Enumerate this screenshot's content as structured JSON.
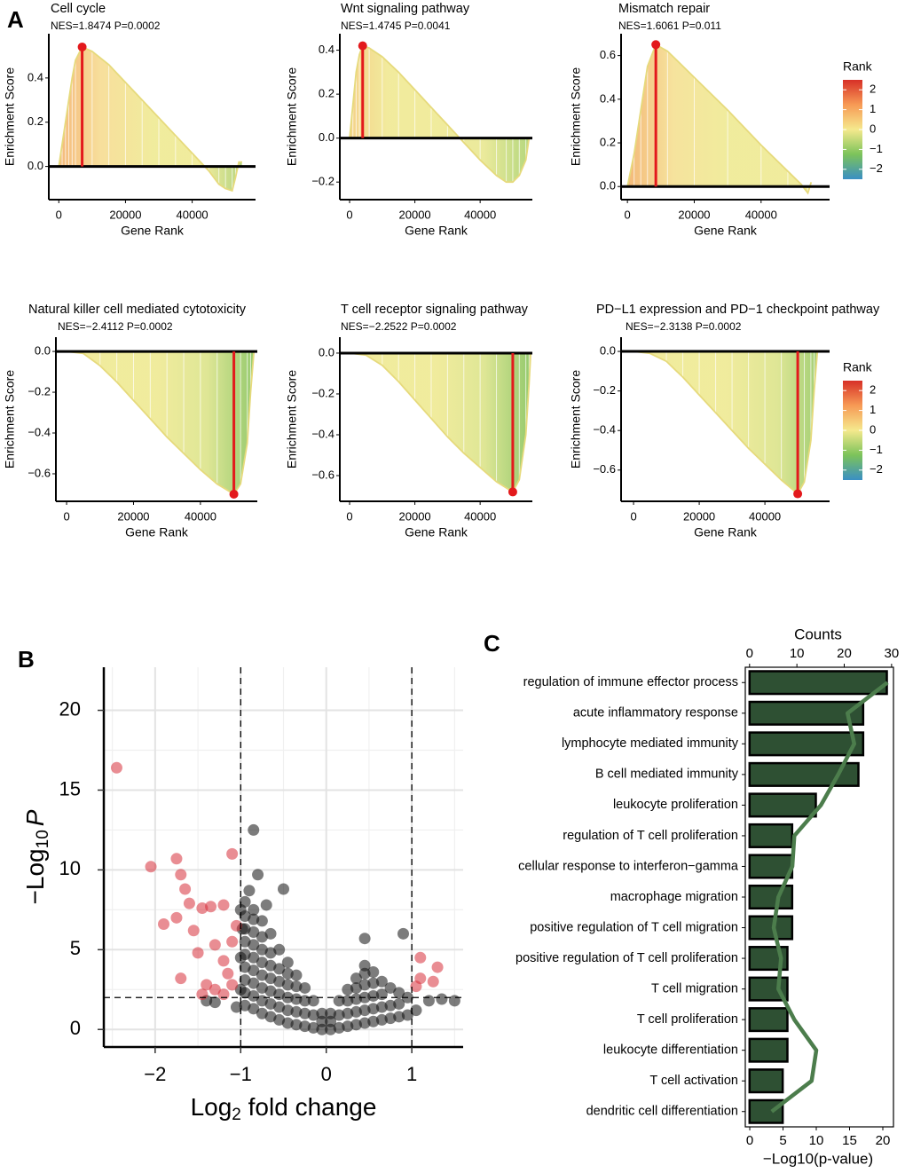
{
  "panel_labels": [
    "A",
    "B",
    "C"
  ],
  "chart_data": [
    {
      "type": "gsea",
      "title": "Cell cycle",
      "subtitle": "NES=1.8474 P=0.0002",
      "xlabel": "Gene Rank",
      "ylabel": "Enrichment Score",
      "x": [
        0,
        1000,
        2000,
        3000,
        4000,
        5000,
        7000,
        10000,
        15000,
        20000,
        25000,
        30000,
        35000,
        40000,
        45000,
        48000,
        50000,
        52000,
        53000,
        54000,
        55000
      ],
      "values": [
        0,
        0.1,
        0.2,
        0.3,
        0.4,
        0.48,
        0.54,
        0.52,
        0.46,
        0.38,
        0.3,
        0.22,
        0.14,
        0.06,
        -0.02,
        -0.08,
        -0.1,
        -0.11,
        -0.05,
        0.02,
        0.02
      ],
      "xlim": [
        -3000,
        59000
      ],
      "ylim": [
        -0.15,
        0.6
      ],
      "xticks": [
        0,
        20000,
        40000
      ],
      "yticks": [
        {
          "value": 0,
          "label": "0.0"
        },
        0.2,
        0.4
      ],
      "color": "#e6da7c",
      "peak_color": "#e3191c",
      "gradient": [
        "#f2a35a",
        "#f6d98a",
        "#eee88c",
        "#eee88c",
        "#8dc35e"
      ]
    },
    {
      "type": "gsea",
      "title": "Wnt signaling pathway",
      "subtitle": "NES=1.4745 P=0.0041",
      "xlabel": "Gene Rank",
      "ylabel": "Enrichment Score",
      "x": [
        0,
        1000,
        2000,
        3000,
        4000,
        6000,
        10000,
        15000,
        20000,
        25000,
        30000,
        35000,
        40000,
        45000,
        48000,
        50000,
        52000,
        54000,
        55000
      ],
      "values": [
        0,
        0.15,
        0.3,
        0.38,
        0.42,
        0.41,
        0.37,
        0.3,
        0.22,
        0.14,
        0.06,
        -0.02,
        -0.1,
        -0.17,
        -0.2,
        -0.2,
        -0.17,
        -0.1,
        0
      ],
      "xlim": [
        -3000,
        56000
      ],
      "ylim": [
        -0.28,
        0.475
      ],
      "xticks": [
        0,
        20000,
        40000
      ],
      "yticks": [
        {
          "value": -0.2,
          "label": "−0.2"
        },
        {
          "value": 0,
          "label": "0.0"
        },
        0.2,
        0.4
      ],
      "color": "#e6da7c",
      "peak_color": "#e3191c",
      "gradient": [
        "#f4c36e",
        "#efe78c",
        "#eee88c",
        "#e7e68a",
        "#a4cf65"
      ]
    },
    {
      "type": "gsea",
      "title": "Mismatch repair",
      "subtitle": "NES=1.6061 P=0.011",
      "xlabel": "Gene Rank",
      "ylabel": "Enrichment Score",
      "x": [
        0,
        2000,
        4000,
        6000,
        8500,
        12000,
        20000,
        30000,
        40000,
        48000,
        52000,
        54000,
        55000
      ],
      "values": [
        0,
        0.15,
        0.35,
        0.55,
        0.65,
        0.62,
        0.5,
        0.35,
        0.19,
        0.07,
        0.01,
        -0.03,
        0.02
      ],
      "xlim": [
        -1900,
        60500
      ],
      "ylim": [
        -0.06,
        0.7
      ],
      "xticks": [
        0,
        20000,
        40000
      ],
      "yticks": [
        {
          "value": 0,
          "label": "0.0"
        },
        0.2,
        0.4,
        0.6
      ],
      "color": "#e6da7c",
      "peak_color": "#e3191c",
      "gradient": [
        "#f2a65b",
        "#f4de8c",
        "#eee88c",
        "#eee88c",
        "#eee88c"
      ],
      "legend": {
        "title": "Rank",
        "lim": [
          -2.5,
          2.5
        ],
        "ticks": [
          2,
          1,
          0,
          {
            "value": -1,
            "label": "−1"
          },
          {
            "value": -2,
            "label": "−2"
          }
        ],
        "colors": [
          "#d73027",
          "#f79a55",
          "#f5e98d",
          "#7cc35a",
          "#3a8fc4"
        ]
      }
    },
    {
      "type": "gsea",
      "title": "Natural killer cell mediated cytotoxicity",
      "subtitle": "NES=−2.4112 P=0.0002",
      "xlabel": "Gene Rank",
      "ylabel": "Enrichment Score",
      "x": [
        0,
        5000,
        10000,
        15000,
        20000,
        25000,
        30000,
        35000,
        40000,
        45000,
        50000,
        52000,
        54000,
        55000,
        56000
      ],
      "values": [
        0,
        -0.01,
        -0.07,
        -0.15,
        -0.24,
        -0.33,
        -0.42,
        -0.5,
        -0.58,
        -0.65,
        -0.7,
        -0.65,
        -0.45,
        -0.2,
        0
      ],
      "xlim": [
        -3200,
        57000
      ],
      "ylim": [
        -0.735,
        0.07
      ],
      "xticks": [
        0,
        20000,
        40000
      ],
      "yticks": [
        {
          "value": -0.6,
          "label": "−0.6"
        },
        {
          "value": -0.4,
          "label": "−0.4"
        },
        {
          "value": -0.2,
          "label": "−0.2"
        },
        {
          "value": 0,
          "label": "0.0"
        }
      ],
      "color": "#e6da7c",
      "peak_color": "#e3191c",
      "gradient": [
        "#efe48c",
        "#eee88c",
        "#eee88c",
        "#d9e283",
        "#7fbf52"
      ]
    },
    {
      "type": "gsea",
      "title": "T cell receptor signaling pathway",
      "subtitle": "NES=−2.2522 P=0.0002",
      "xlabel": "Gene Rank",
      "ylabel": "Enrichment Score",
      "x": [
        0,
        5000,
        10000,
        15000,
        20000,
        25000,
        30000,
        35000,
        40000,
        45000,
        50000,
        52000,
        54000,
        55000,
        55500
      ],
      "values": [
        0,
        -0.01,
        -0.06,
        -0.14,
        -0.23,
        -0.32,
        -0.41,
        -0.49,
        -0.56,
        -0.63,
        -0.68,
        -0.62,
        -0.4,
        -0.15,
        0
      ],
      "xlim": [
        -3000,
        56000
      ],
      "ylim": [
        -0.726,
        0.078
      ],
      "xticks": [
        0,
        20000,
        40000
      ],
      "yticks": [
        {
          "value": -0.6,
          "label": "−0.6"
        },
        {
          "value": -0.4,
          "label": "−0.4"
        },
        {
          "value": -0.2,
          "label": "−0.2"
        },
        {
          "value": 0,
          "label": "0.0"
        }
      ],
      "color": "#e6da7c",
      "peak_color": "#e3191c",
      "gradient": [
        "#efe48c",
        "#eee88c",
        "#eee88c",
        "#d9e283",
        "#7fbf52"
      ]
    },
    {
      "type": "gsea",
      "title": "PD−L1 expression and PD−1 checkpoint pathway",
      "subtitle": "NES=−2.3138 P=0.0002",
      "xlabel": "Gene Rank",
      "ylabel": "Enrichment Score",
      "x": [
        0,
        5000,
        10000,
        15000,
        20000,
        25000,
        30000,
        35000,
        40000,
        45000,
        50000,
        52000,
        54000,
        55000,
        56000
      ],
      "values": [
        0,
        -0.01,
        -0.05,
        -0.13,
        -0.22,
        -0.31,
        -0.4,
        -0.49,
        -0.57,
        -0.65,
        -0.72,
        -0.66,
        -0.45,
        -0.2,
        0
      ],
      "xlim": [
        -3800,
        59700
      ],
      "ylim": [
        -0.758,
        0.072
      ],
      "xticks": [
        0,
        20000,
        40000
      ],
      "yticks": [
        {
          "value": -0.6,
          "label": "−0.6"
        },
        {
          "value": -0.4,
          "label": "−0.4"
        },
        {
          "value": -0.2,
          "label": "−0.2"
        },
        {
          "value": 0,
          "label": "0.0"
        }
      ],
      "color": "#e6da7c",
      "peak_color": "#e3191c",
      "gradient": [
        "#efe48c",
        "#eee88c",
        "#eee88c",
        "#d9e283",
        "#7fbf52"
      ],
      "legend": {
        "title": "Rank",
        "lim": [
          -2.5,
          2.5
        ],
        "ticks": [
          2,
          1,
          0,
          {
            "value": -1,
            "label": "−1"
          },
          {
            "value": -2,
            "label": "−2"
          }
        ],
        "colors": [
          "#d73027",
          "#f79a55",
          "#f5e98d",
          "#7cc35a",
          "#3a8fc4"
        ]
      }
    },
    {
      "type": "scatter",
      "xlabel": {
        "main": "Log",
        "sub": "2",
        "rest": " fold change"
      },
      "ylabel": {
        "main": "−Log",
        "sub": "10",
        "italic": "P"
      },
      "xlim": [
        -2.6,
        1.6
      ],
      "ylim": [
        -1.1,
        22.7
      ],
      "xticks": [
        {
          "value": -2,
          "label": "−2"
        },
        {
          "value": -1,
          "label": "−1"
        },
        0,
        1
      ],
      "yticks": [
        0,
        5,
        10,
        15,
        20
      ],
      "minor_xticks": [
        -2.5,
        -1.5,
        -0.5,
        0.5,
        1.5
      ],
      "minor_yticks": [
        2.5,
        7.5,
        12.5,
        17.5
      ],
      "grid": true,
      "xcutoffs": [
        -1,
        1
      ],
      "ycutoff": 2,
      "series": [
        {
          "color": "#111111",
          "x": [
            -0.95,
            -0.95,
            -0.95,
            -0.95,
            -0.95,
            -0.95,
            -0.95,
            -0.95,
            -0.95,
            -0.85,
            -0.85,
            -0.85,
            -0.85,
            -0.85,
            -0.85,
            -0.85,
            -0.85,
            -0.85,
            -0.75,
            -0.75,
            -0.75,
            -0.75,
            -0.75,
            -0.75,
            -0.75,
            -0.75,
            -0.65,
            -0.65,
            -0.65,
            -0.65,
            -0.65,
            -0.65,
            -0.65,
            -0.55,
            -0.55,
            -0.55,
            -0.55,
            -0.55,
            -0.55,
            -0.45,
            -0.45,
            -0.45,
            -0.45,
            -0.45,
            -0.45,
            -0.35,
            -0.35,
            -0.35,
            -0.35,
            -0.35,
            -0.25,
            -0.25,
            -0.25,
            -0.25,
            -0.15,
            -0.15,
            -0.15,
            -0.05,
            -0.05,
            -0.05,
            0.05,
            0.05,
            0.05,
            0.15,
            0.15,
            0.15,
            0.25,
            0.25,
            0.25,
            0.25,
            0.35,
            0.35,
            0.35,
            0.35,
            0.35,
            0.45,
            0.45,
            0.45,
            0.45,
            0.45,
            0.45,
            0.55,
            0.55,
            0.55,
            0.55,
            0.55,
            0.65,
            0.65,
            0.65,
            0.65,
            0.75,
            0.75,
            0.75,
            0.85,
            0.85,
            0.85,
            0.95,
            0.95,
            -0.85,
            -0.8,
            -0.5,
            -0.9,
            -0.7,
            -1.0,
            0.9,
            0.45,
            -1.4,
            -1.3,
            -1.05,
            1.2,
            1.35,
            1.5,
            1.05,
            -1.0,
            -1.0,
            -0.98
          ],
          "values": [
            1.5,
            2.3,
            3.1,
            3.9,
            4.7,
            5.5,
            6.3,
            7.1,
            8.0,
            1.3,
            2.1,
            2.9,
            3.7,
            4.5,
            5.3,
            6.1,
            6.9,
            7.5,
            1.0,
            1.8,
            2.6,
            3.4,
            4.2,
            5.0,
            5.8,
            6.8,
            0.8,
            1.6,
            2.4,
            3.2,
            4.0,
            4.8,
            6.0,
            0.6,
            1.4,
            2.2,
            3.0,
            3.8,
            5.0,
            0.4,
            1.2,
            2.0,
            2.8,
            3.5,
            4.2,
            0.3,
            1.1,
            1.9,
            2.7,
            3.4,
            0.2,
            1.0,
            1.8,
            2.6,
            0.1,
            0.9,
            1.8,
            0,
            0.5,
            1.0,
            0,
            0.5,
            1.0,
            0.1,
            0.9,
            1.8,
            0.2,
            1.0,
            1.8,
            2.5,
            0.3,
            1.1,
            1.9,
            2.6,
            3.2,
            0.4,
            1.2,
            2.0,
            2.8,
            3.5,
            4.0,
            0.5,
            1.3,
            2.1,
            2.9,
            3.6,
            0.6,
            1.4,
            2.2,
            3.0,
            0.7,
            1.5,
            2.6,
            0.8,
            1.6,
            2.3,
            0.9,
            2.0,
            12.5,
            9.7,
            8.8,
            8.7,
            7.8,
            7.5,
            6.0,
            5.7,
            1.8,
            1.7,
            1.4,
            1.8,
            1.9,
            1.8,
            1.2,
            4.5,
            2.5,
            6.3
          ]
        },
        {
          "color": "#d7303a",
          "x": [
            -2.45,
            -2.05,
            -1.75,
            -1.7,
            -1.65,
            -1.6,
            -1.75,
            -1.9,
            -1.55,
            -1.45,
            -1.35,
            -1.2,
            -1.1,
            -1.3,
            -1.5,
            -1.7,
            -1.4,
            -1.2,
            -1.1,
            -1.05,
            -1.15,
            -1.3,
            -1.1,
            -1.45,
            -1.2,
            1.1,
            1.3,
            1.05,
            1.25,
            1.1
          ],
          "values": [
            16.4,
            10.2,
            10.7,
            9.7,
            8.8,
            7.9,
            7.0,
            6.6,
            6.2,
            7.6,
            7.7,
            7.8,
            11.0,
            5.3,
            4.8,
            3.2,
            2.8,
            4.3,
            5.5,
            6.5,
            3.5,
            2.5,
            2.8,
            2.2,
            2.2,
            4.5,
            3.9,
            2.7,
            3.0,
            3.2
          ]
        }
      ]
    },
    {
      "type": "bar",
      "orientation": "horizontal",
      "xlabel": "−Log10(p-value)",
      "x_top_label": "Counts",
      "categories": [
        "regulation of immune effector process",
        "acute inflammatory response",
        "lymphocyte mediated immunity",
        "B cell mediated immunity",
        "leukocyte proliferation",
        "regulation of T cell proliferation",
        "cellular response to interferon−gamma",
        "macrophage migration",
        "positive regulation of T cell migration",
        "positive regulation of T cell proliferation",
        "T cell migration",
        "T cell proliferation",
        "leukocyte differentiation",
        "T cell activation",
        "dendritic cell differentiation"
      ],
      "series": [
        {
          "type": "bar",
          "color": "#2e5033",
          "values": [
            29,
            24,
            24,
            23,
            14,
            9,
            9,
            9,
            9,
            8,
            8,
            8,
            8,
            7,
            7
          ]
        },
        {
          "type": "line",
          "color": "#4c7d4c",
          "axis": "x2",
          "values": [
            20.7,
            14.7,
            15.7,
            13.3,
            10.7,
            6.7,
            6.4,
            4.3,
            3.6,
            4.7,
            4.3,
            6.7,
            10,
            9.3,
            3.3
          ]
        }
      ],
      "xlim": [
        -0.9,
        30.4
      ],
      "xticks": [
        0,
        10,
        20,
        30
      ],
      "x2lim": [
        -0.67,
        21.6
      ],
      "x2ticks": [
        0,
        5,
        10,
        15,
        20
      ]
    }
  ]
}
